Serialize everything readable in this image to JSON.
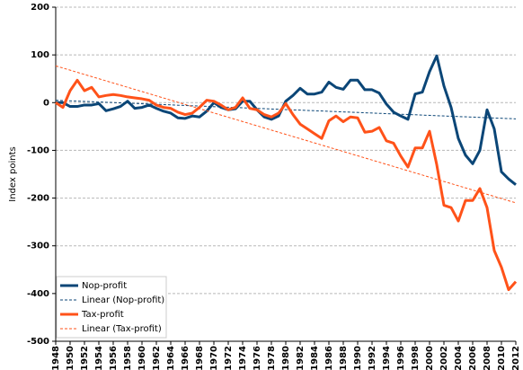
{
  "chart_data": {
    "type": "line",
    "y_label": "Index points",
    "x": [
      1948,
      1949,
      1950,
      1951,
      1952,
      1953,
      1954,
      1955,
      1956,
      1957,
      1958,
      1959,
      1960,
      1961,
      1962,
      1963,
      1964,
      1965,
      1966,
      1967,
      1968,
      1969,
      1970,
      1971,
      1972,
      1973,
      1974,
      1975,
      1976,
      1977,
      1978,
      1979,
      1980,
      1981,
      1982,
      1983,
      1984,
      1985,
      1986,
      1987,
      1988,
      1989,
      1990,
      1991,
      1992,
      1993,
      1994,
      1995,
      1996,
      1997,
      1998,
      1999,
      2000,
      2001,
      2002,
      2003,
      2004,
      2005,
      2006,
      2007,
      2008,
      2009,
      2010,
      2011,
      2012
    ],
    "series": [
      {
        "name": "Nop-profit",
        "color": "#0b4677",
        "values": [
          0,
          0,
          -8,
          -8,
          -5,
          -5,
          -2,
          -17,
          -13,
          -8,
          3,
          -12,
          -10,
          -5,
          -12,
          -18,
          -22,
          -32,
          -33,
          -28,
          -30,
          -18,
          0,
          -10,
          -15,
          -13,
          3,
          3,
          -15,
          -30,
          -35,
          -28,
          3,
          15,
          30,
          18,
          18,
          22,
          43,
          32,
          28,
          47,
          47,
          27,
          27,
          20,
          -3,
          -20,
          -28,
          -35,
          18,
          22,
          65,
          98,
          35,
          -10,
          -75,
          -110,
          -128,
          -100,
          -15,
          -55,
          -145,
          -160,
          -172
        ]
      },
      {
        "name": "Linear (Nop-profit)",
        "color": "#0b4677",
        "dashed": true,
        "x": [
          1948,
          2012
        ],
        "values": [
          5,
          -34
        ]
      },
      {
        "name": "Tax-profit",
        "color": "#ff5219",
        "values": [
          0,
          -10,
          25,
          47,
          25,
          32,
          12,
          15,
          17,
          15,
          12,
          10,
          8,
          5,
          -5,
          -10,
          -12,
          -20,
          -25,
          -22,
          -10,
          5,
          3,
          -5,
          -15,
          -10,
          10,
          -12,
          -15,
          -25,
          -30,
          -22,
          -2,
          -25,
          -45,
          -55,
          -65,
          -75,
          -38,
          -28,
          -40,
          -30,
          -32,
          -62,
          -60,
          -52,
          -80,
          -85,
          -112,
          -135,
          -95,
          -95,
          -60,
          -130,
          -215,
          -220,
          -248,
          -205,
          -205,
          -180,
          -220,
          -310,
          -345,
          -392,
          -375
        ]
      },
      {
        "name": "Linear (Tax-profit)",
        "color": "#ff5219",
        "dashed": true,
        "x": [
          1948,
          2012
        ],
        "values": [
          77,
          -210
        ]
      }
    ],
    "xlim": [
      1948,
      2012
    ],
    "xticks": [
      1948,
      1950,
      1952,
      1954,
      1956,
      1958,
      1960,
      1962,
      1964,
      1966,
      1968,
      1970,
      1972,
      1974,
      1976,
      1978,
      1980,
      1982,
      1984,
      1986,
      1988,
      1990,
      1992,
      1994,
      1996,
      1998,
      2000,
      2002,
      2004,
      2006,
      2008,
      2010,
      2012
    ],
    "ylim": [
      -500,
      200
    ],
    "yticks": [
      -500,
      -400,
      -300,
      -200,
      -100,
      0,
      100,
      200
    ],
    "grid": true,
    "legend": "lower-left"
  }
}
